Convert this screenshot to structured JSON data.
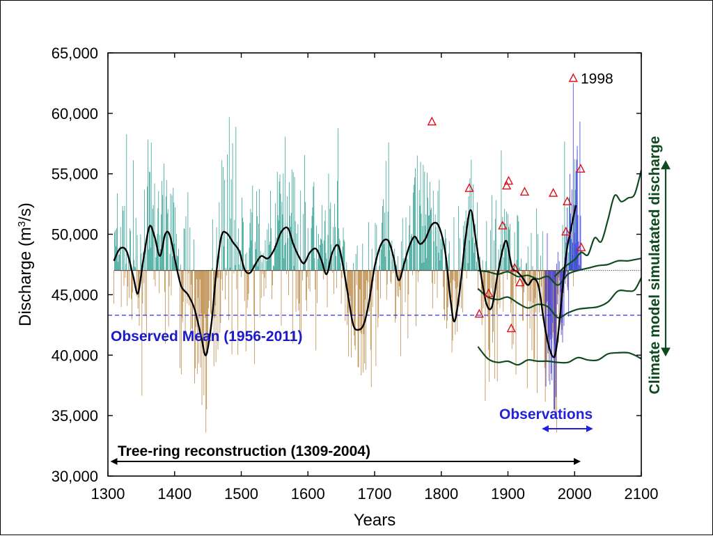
{
  "chart_data": {
    "type": "bar",
    "xlabel": "Years",
    "ylabel_prefix": "Discharge (m",
    "ylabel_sup": "3",
    "ylabel_suffix": "/s)",
    "xlim": [
      1300,
      2100
    ],
    "ylim": [
      30000,
      65000
    ],
    "x_ticks": [
      1300,
      1400,
      1500,
      1600,
      1700,
      1800,
      1900,
      2000,
      2100
    ],
    "x_tick_labels": [
      "1300",
      "1400",
      "1500",
      "1600",
      "1700",
      "1800",
      "1900",
      "2000",
      "2100"
    ],
    "y_ticks": [
      30000,
      35000,
      40000,
      45000,
      50000,
      55000,
      60000,
      65000
    ],
    "y_tick_labels": [
      "30,000",
      "35,000",
      "40,000",
      "45,000",
      "50,000",
      "55,000",
      "60,000",
      "65,000"
    ],
    "reconstruction_mean": 47000,
    "observed_mean_value": 43300,
    "observed_mean_label": "Observed Mean (1956-2011)",
    "tree_ring_label": "Tree-ring reconstruction (1309-2004)",
    "tree_ring_span": [
      1309,
      2004
    ],
    "observations_label": "Observations",
    "observations_span": [
      1956,
      2011
    ],
    "climate_model_label": "Climate model simulatated discharge",
    "annotation_year_label": "1998",
    "colors": {
      "above_mean": "#2a9d8f",
      "below_mean": "#b8823c",
      "smooth": "#000000",
      "observed_mean": "#1a1acc",
      "observations": "#3333dd",
      "model": "#0f4a1f",
      "extreme_marker": "#e0101a"
    },
    "smoothed_reconstruction": {
      "x": [
        1309,
        1318,
        1328,
        1338,
        1345,
        1352,
        1362,
        1370,
        1378,
        1386,
        1393,
        1402,
        1410,
        1420,
        1430,
        1440,
        1447,
        1455,
        1462,
        1470,
        1478,
        1488,
        1497,
        1505,
        1513,
        1522,
        1530,
        1540,
        1550,
        1560,
        1570,
        1578,
        1586,
        1594,
        1603,
        1612,
        1620,
        1628,
        1636,
        1645,
        1652,
        1660,
        1668,
        1676,
        1684,
        1692,
        1700,
        1710,
        1720,
        1728,
        1736,
        1744,
        1752,
        1760,
        1768,
        1776,
        1786,
        1796,
        1806,
        1814,
        1820,
        1828,
        1836,
        1844,
        1852,
        1860,
        1868,
        1876,
        1884,
        1892,
        1898,
        1906,
        1914,
        1922,
        1930,
        1938,
        1946,
        1954,
        1962,
        1970,
        1976,
        1982,
        1988,
        1994,
        2002
      ],
      "y": [
        47800,
        48800,
        48600,
        46500,
        45100,
        47500,
        50600,
        49800,
        48200,
        50000,
        49900,
        47500,
        45700,
        45000,
        43800,
        41500,
        40000,
        42500,
        46500,
        49800,
        50100,
        49300,
        48600,
        47100,
        46800,
        47600,
        48200,
        48000,
        48800,
        50200,
        50500,
        49200,
        48200,
        47600,
        48500,
        48800,
        47900,
        46700,
        48400,
        49100,
        47600,
        45000,
        42500,
        42100,
        42600,
        44500,
        47300,
        49200,
        49500,
        48200,
        46200,
        47500,
        49000,
        49800,
        49200,
        49600,
        50800,
        50700,
        48500,
        44500,
        42800,
        45500,
        49500,
        52000,
        49500,
        46500,
        44200,
        44000,
        46500,
        48700,
        49400,
        47300,
        46900,
        46400,
        45800,
        46300,
        45700,
        42800,
        40600,
        39900,
        42100,
        45500,
        48600,
        50300,
        52400
      ]
    },
    "model_series": [
      {
        "name": "upper",
        "x": [
          1970,
          1985,
          2000,
          2010,
          2020,
          2030,
          2040,
          2050,
          2060,
          2070,
          2080,
          2090,
          2100
        ],
        "y": [
          46500,
          47300,
          47900,
          48500,
          48300,
          49700,
          49400,
          51200,
          53200,
          52700,
          53000,
          53300,
          55300
        ]
      },
      {
        "name": "middle",
        "x": [
          1855,
          1870,
          1885,
          1900,
          1915,
          1930,
          1945,
          1960,
          1975,
          1990,
          2005,
          2020,
          2035,
          2050,
          2065,
          2080,
          2090,
          2100
        ],
        "y": [
          45500,
          44800,
          44600,
          44800,
          44300,
          43900,
          44200,
          44000,
          43100,
          43500,
          43800,
          43900,
          44000,
          44400,
          45300,
          45300,
          45400,
          46400
        ]
      },
      {
        "name": "lower",
        "x": [
          1855,
          1870,
          1885,
          1900,
          1915,
          1930,
          1945,
          1960,
          1975,
          1990,
          2005,
          2020,
          2035,
          2050,
          2065,
          2080,
          2090,
          2100
        ],
        "y": [
          47000,
          46900,
          46700,
          46900,
          46500,
          46600,
          46300,
          46500,
          45800,
          46700,
          47000,
          47200,
          47400,
          47500,
          47800,
          47800,
          47900,
          48000
        ]
      },
      {
        "name": "bottom",
        "x": [
          1855,
          1870,
          1885,
          1900,
          1915,
          1930,
          1945,
          1960,
          1975,
          1990,
          2005,
          2020,
          2035,
          2050,
          2065,
          2080,
          2090,
          2100
        ],
        "y": [
          40700,
          39700,
          39400,
          39500,
          39200,
          39600,
          39500,
          39500,
          39400,
          39400,
          39800,
          39600,
          39600,
          40100,
          40200,
          40200,
          40000,
          39700
        ]
      }
    ],
    "extreme_markers": {
      "x": [
        1786,
        1842,
        1857,
        1871,
        1892,
        1898,
        1901,
        1905,
        1910,
        1918,
        1925,
        1968,
        1987,
        1989,
        1998,
        2009,
        2010
      ],
      "y": [
        59300,
        53800,
        43400,
        45100,
        50700,
        54000,
        54400,
        42200,
        47200,
        46000,
        53500,
        53400,
        50200,
        52700,
        62900,
        55400,
        48900
      ]
    },
    "model_range": [
      40000,
      56000
    ]
  }
}
